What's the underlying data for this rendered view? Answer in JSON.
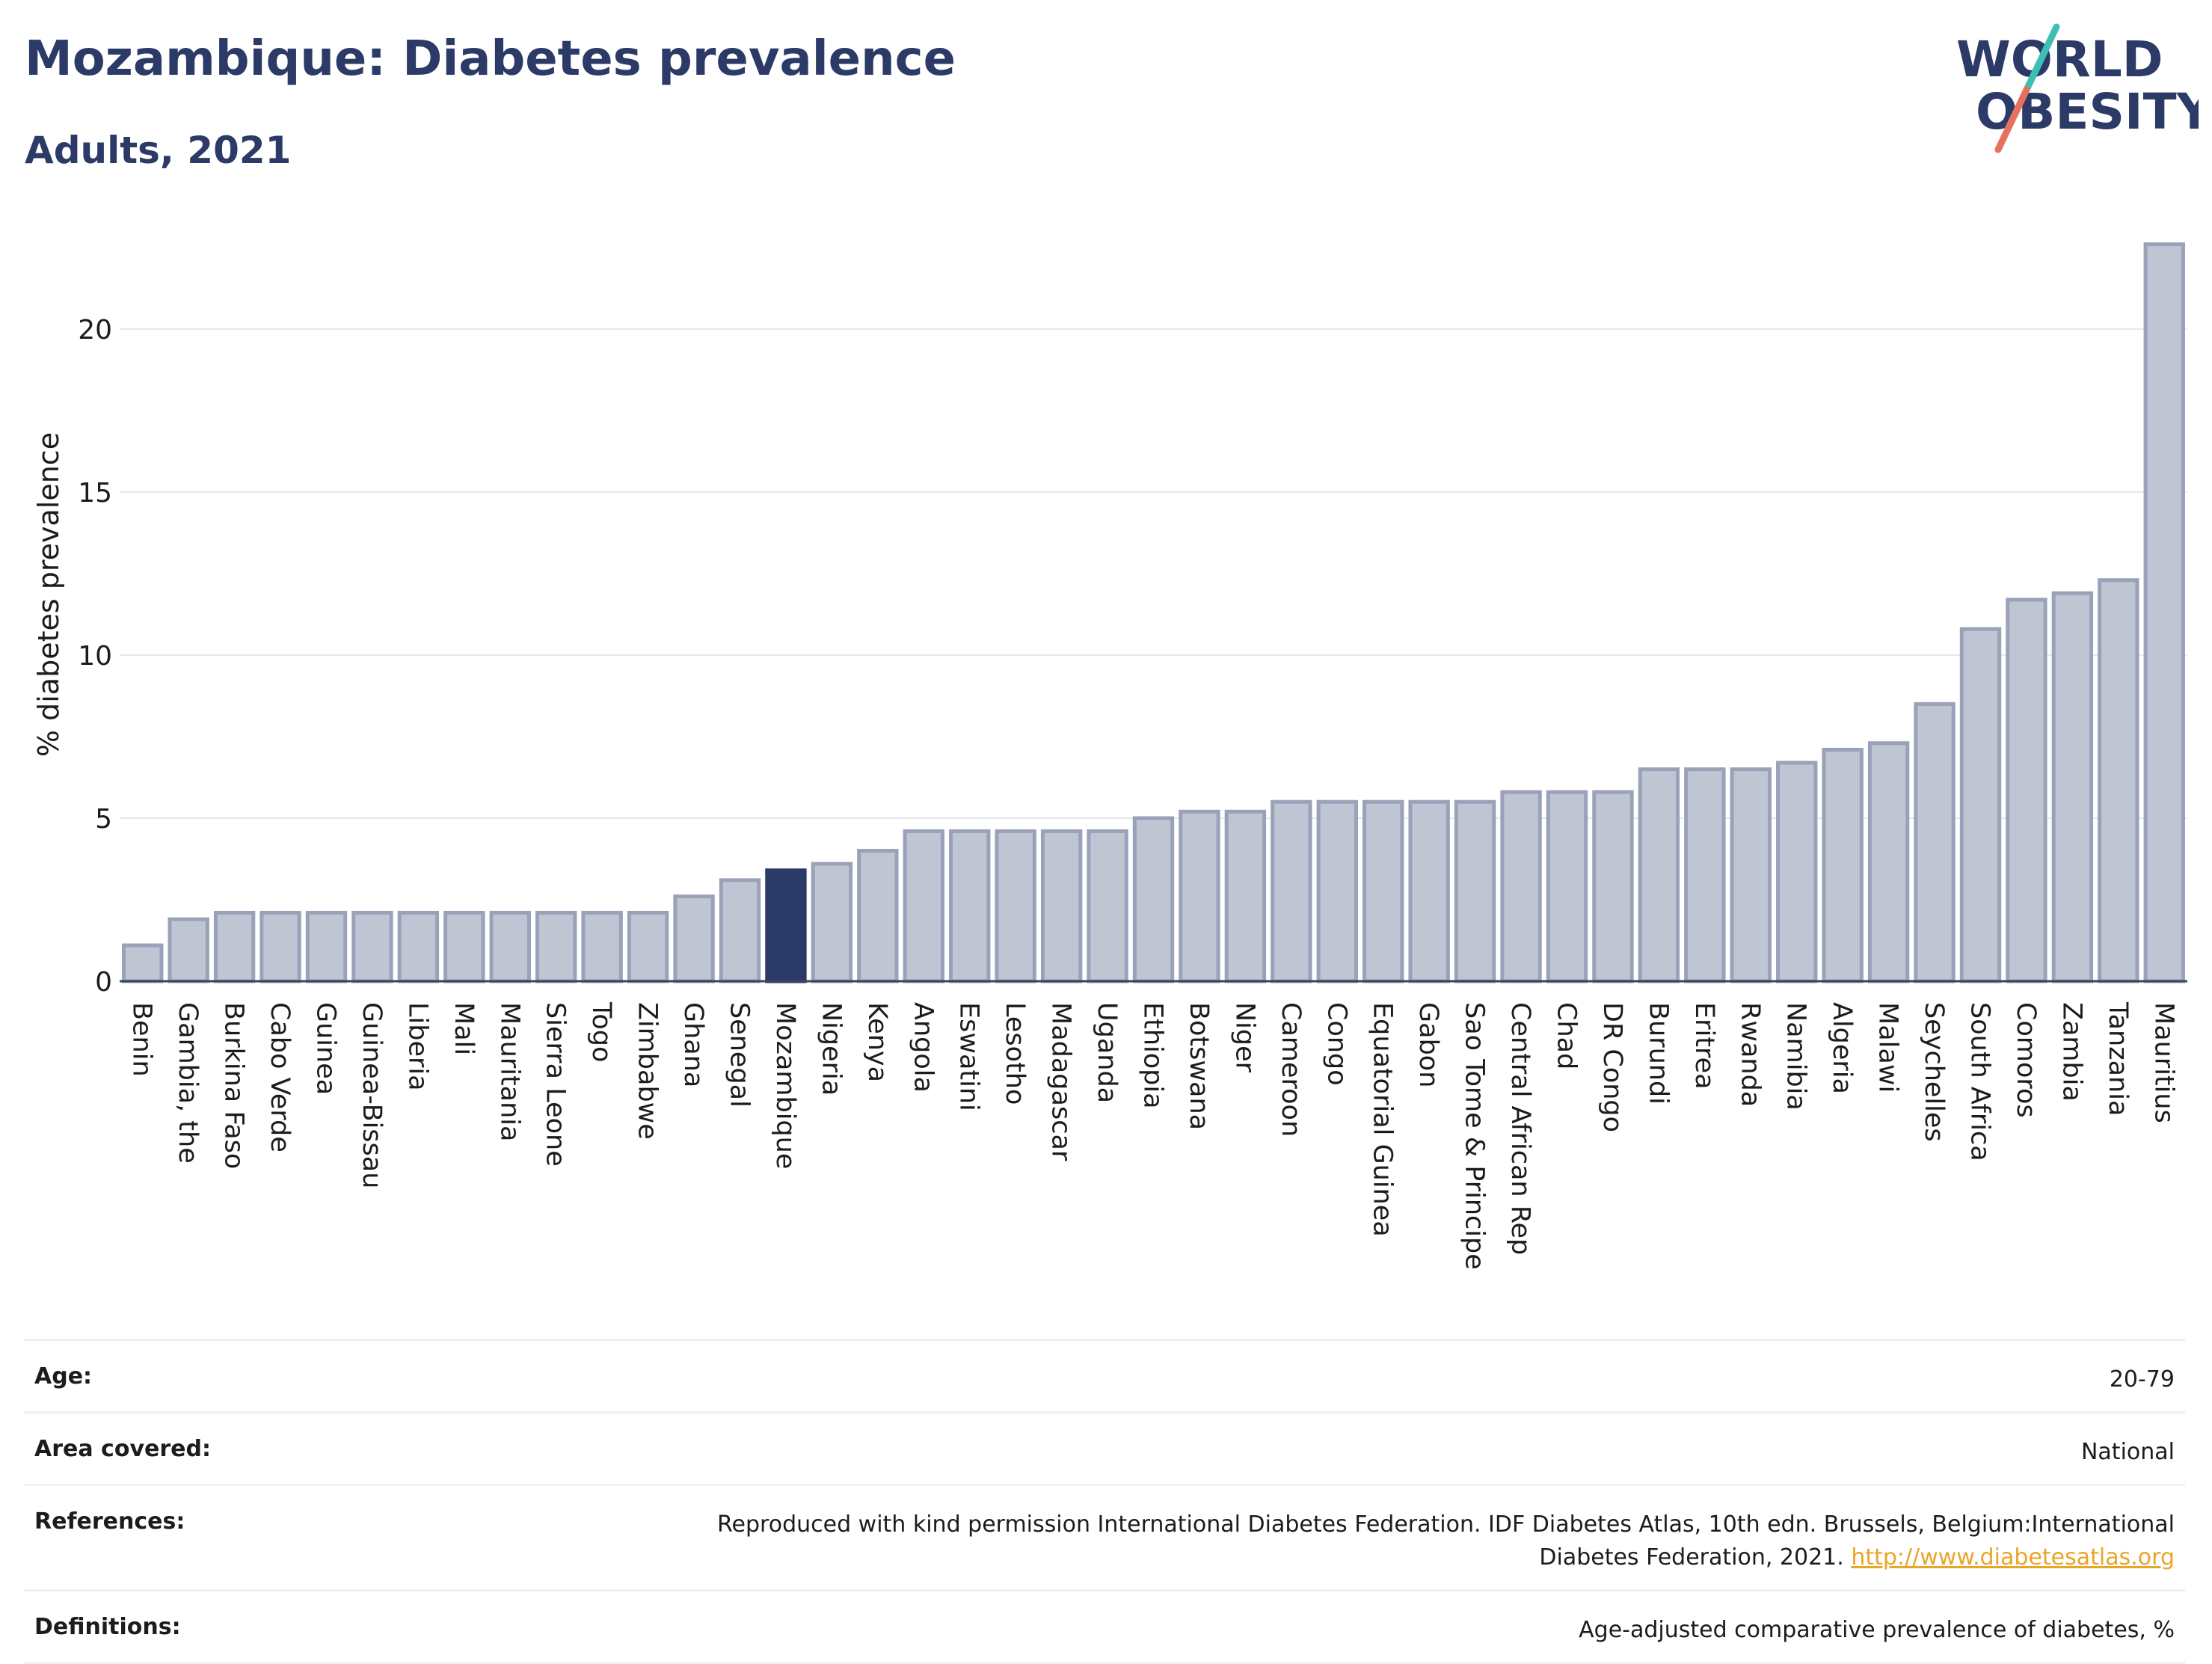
{
  "header": {
    "title": "Mozambique: Diabetes prevalence",
    "subtitle": "Adults, 2021"
  },
  "logo": {
    "line1": "WORLD",
    "line2": "OBESITY",
    "colors": {
      "text": "#2b3a66",
      "slash_top": "#3fbfb4",
      "slash_bottom": "#e8705f"
    }
  },
  "chart_data": {
    "type": "bar",
    "ylabel": "% diabetes prevalence",
    "xlabel": "",
    "ylim": [
      0,
      22.7
    ],
    "yticks": [
      0,
      5,
      10,
      15,
      20
    ],
    "grid": true,
    "highlight": "Mozambique",
    "colors": {
      "bar_fill": "#c0c5d3",
      "bar_stroke": "#9aa2b9",
      "highlight_fill": "#2b3a66",
      "grid": "#e6e8ee",
      "axis": "#3a4460"
    },
    "categories": [
      "Benin",
      "Gambia, the",
      "Burkina Faso",
      "Cabo Verde",
      "Guinea",
      "Guinea-Bissau",
      "Liberia",
      "Mali",
      "Mauritania",
      "Sierra Leone",
      "Togo",
      "Zimbabwe",
      "Ghana",
      "Senegal",
      "Mozambique",
      "Nigeria",
      "Kenya",
      "Angola",
      "Eswatini",
      "Lesotho",
      "Madagascar",
      "Uganda",
      "Ethiopia",
      "Botswana",
      "Niger",
      "Cameroon",
      "Congo",
      "Equatorial Guinea",
      "Gabon",
      "Sao Tome & Principe",
      "Central African Rep",
      "Chad",
      "DR Congo",
      "Burundi",
      "Eritrea",
      "Rwanda",
      "Namibia",
      "Algeria",
      "Malawi",
      "Seychelles",
      "South Africa",
      "Comoros",
      "Zambia",
      "Tanzania",
      "Mauritius"
    ],
    "values": [
      1.1,
      1.9,
      2.1,
      2.1,
      2.1,
      2.1,
      2.1,
      2.1,
      2.1,
      2.1,
      2.1,
      2.1,
      2.6,
      3.1,
      3.4,
      3.6,
      4.0,
      4.6,
      4.6,
      4.6,
      4.6,
      4.6,
      5.0,
      5.2,
      5.2,
      5.5,
      5.5,
      5.5,
      5.5,
      5.5,
      5.8,
      5.8,
      5.8,
      6.5,
      6.5,
      6.5,
      6.7,
      7.1,
      7.3,
      8.5,
      10.8,
      11.7,
      11.9,
      12.3,
      22.6
    ]
  },
  "info": {
    "rows": [
      {
        "label": "Age:",
        "value": "20-79"
      },
      {
        "label": "Area covered:",
        "value": "National"
      },
      {
        "label": "References:",
        "value": "Reproduced with kind permission International Diabetes Federation.  IDF Diabetes Atlas, 10th edn. Brussels, Belgium:International Diabetes Federation, 2021. ",
        "link": "http://www.diabetesatlas.org"
      },
      {
        "label": "Definitions:",
        "value": "Age-adjusted comparative prevalence of diabetes, %"
      }
    ]
  }
}
